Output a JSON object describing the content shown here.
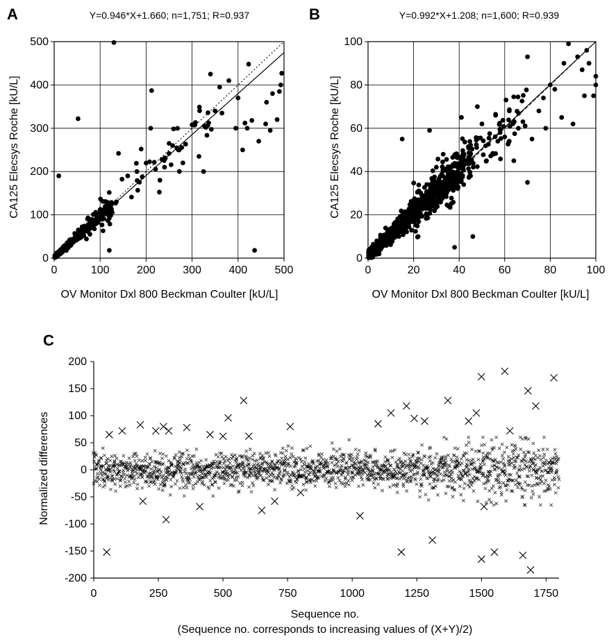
{
  "chart_data": [
    {
      "panel": "A",
      "type": "scatter",
      "annotation": "Y=0.946*X+1.660; n=1,751; R=0.937",
      "xlabel": "OV Monitor Dxl 800 Beckman Coulter [kU/L]",
      "ylabel": "CA125 Elecsys Roche [kU/L]",
      "xlim": [
        0,
        500
      ],
      "ylim": [
        0,
        500
      ],
      "xticks": [
        0,
        100,
        200,
        300,
        400,
        500
      ],
      "yticks": [
        0,
        100,
        200,
        300,
        400,
        500
      ],
      "grid": true,
      "regression": {
        "slope": 0.946,
        "intercept": 1.66
      },
      "identity_line": "dotted",
      "seed": 11,
      "n_bulk": 380,
      "outliers": [
        [
          130,
          498
        ],
        [
          52,
          322
        ],
        [
          10,
          190
        ],
        [
          212,
          387
        ],
        [
          340,
          425
        ],
        [
          360,
          395
        ],
        [
          423,
          448
        ],
        [
          436,
          18
        ],
        [
          120,
          18
        ],
        [
          462,
          360
        ],
        [
          485,
          320
        ],
        [
          493,
          400
        ],
        [
          495,
          427
        ],
        [
          380,
          410
        ],
        [
          395,
          300
        ],
        [
          400,
          370
        ],
        [
          415,
          312
        ],
        [
          430,
          318
        ],
        [
          445,
          270
        ],
        [
          470,
          295
        ],
        [
          300,
          308
        ],
        [
          250,
          265
        ],
        [
          270,
          250
        ],
        [
          330,
          302
        ],
        [
          350,
          340
        ],
        [
          365,
          335
        ],
        [
          240,
          210
        ],
        [
          230,
          180
        ],
        [
          210,
          300
        ],
        [
          140,
          242
        ],
        [
          160,
          190
        ],
        [
          180,
          200
        ],
        [
          410,
          250
        ],
        [
          420,
          300
        ],
        [
          460,
          310
        ],
        [
          475,
          380
        ],
        [
          490,
          385
        ],
        [
          280,
          220
        ],
        [
          315,
          235
        ],
        [
          325,
          200
        ]
      ]
    },
    {
      "panel": "B",
      "type": "scatter",
      "annotation": "Y=0.992*X+1.208; n=1,600; R=0.939",
      "xlabel": "OV Monitor Dxl 800 Beckman Coulter [kU/L]",
      "ylabel": "CA125 Elecsys Roche [kU/L]",
      "xlim": [
        0,
        100
      ],
      "ylim": [
        0,
        100
      ],
      "xticks": [
        0,
        20,
        40,
        60,
        80,
        100
      ],
      "yticks": [
        0,
        20,
        40,
        60,
        80,
        100
      ],
      "grid": true,
      "regression": {
        "slope": 0.992,
        "intercept": 1.208
      },
      "identity_line": "dashed",
      "seed": 23,
      "n_bulk": 900,
      "outliers": [
        [
          15,
          55
        ],
        [
          27,
          59
        ],
        [
          38,
          5
        ],
        [
          46,
          10
        ],
        [
          41,
          65
        ],
        [
          48,
          70
        ],
        [
          70,
          35
        ],
        [
          77,
          74
        ],
        [
          80,
          80
        ],
        [
          85,
          65
        ],
        [
          90,
          62
        ],
        [
          88,
          99
        ],
        [
          92,
          93
        ],
        [
          96,
          96
        ],
        [
          100,
          84
        ],
        [
          100,
          80
        ],
        [
          99,
          75
        ],
        [
          94,
          87
        ],
        [
          86,
          90
        ],
        [
          82,
          78
        ],
        [
          70,
          93
        ],
        [
          58,
          58
        ],
        [
          50,
          62
        ],
        [
          55,
          48
        ],
        [
          62,
          54
        ],
        [
          66,
          60
        ],
        [
          75,
          68
        ],
        [
          72,
          55
        ],
        [
          64,
          45
        ],
        [
          60,
          56
        ],
        [
          52,
          45
        ],
        [
          45,
          38
        ],
        [
          95,
          75
        ],
        [
          97,
          90
        ],
        [
          30,
          42
        ],
        [
          22,
          10
        ],
        [
          33,
          48
        ],
        [
          42,
          34
        ],
        [
          56,
          66
        ],
        [
          78,
          60
        ]
      ]
    },
    {
      "panel": "C",
      "type": "scatter",
      "xlabel": "Sequence no.",
      "xlabel_note": "(Sequence no. corresponds to increasing values of (X+Y)/2)",
      "ylabel": "Normalized differences",
      "xlim": [
        0,
        1800
      ],
      "ylim": [
        -200,
        200
      ],
      "xticks": [
        0,
        250,
        500,
        750,
        1000,
        1250,
        1500,
        1750
      ],
      "yticks": [
        -200,
        -150,
        -100,
        -50,
        0,
        50,
        100,
        150,
        200
      ],
      "grid": false,
      "marker": "x",
      "seed": 37,
      "n_bulk": 1750,
      "outliers": [
        [
          50,
          -152
        ],
        [
          60,
          65
        ],
        [
          110,
          72
        ],
        [
          180,
          83
        ],
        [
          190,
          -58
        ],
        [
          240,
          72
        ],
        [
          270,
          80
        ],
        [
          280,
          -92
        ],
        [
          290,
          72
        ],
        [
          360,
          78
        ],
        [
          410,
          -68
        ],
        [
          450,
          65
        ],
        [
          500,
          62
        ],
        [
          520,
          96
        ],
        [
          580,
          128
        ],
        [
          600,
          62
        ],
        [
          650,
          -75
        ],
        [
          700,
          -58
        ],
        [
          760,
          80
        ],
        [
          800,
          -42
        ],
        [
          1030,
          -85
        ],
        [
          1100,
          85
        ],
        [
          1150,
          105
        ],
        [
          1190,
          -152
        ],
        [
          1210,
          118
        ],
        [
          1240,
          95
        ],
        [
          1280,
          90
        ],
        [
          1310,
          -130
        ],
        [
          1370,
          128
        ],
        [
          1450,
          90
        ],
        [
          1480,
          105
        ],
        [
          1500,
          172
        ],
        [
          1510,
          -68
        ],
        [
          1500,
          -165
        ],
        [
          1550,
          -152
        ],
        [
          1590,
          182
        ],
        [
          1610,
          72
        ],
        [
          1660,
          -158
        ],
        [
          1680,
          146
        ],
        [
          1690,
          -185
        ],
        [
          1710,
          118
        ],
        [
          1780,
          170
        ]
      ]
    }
  ]
}
